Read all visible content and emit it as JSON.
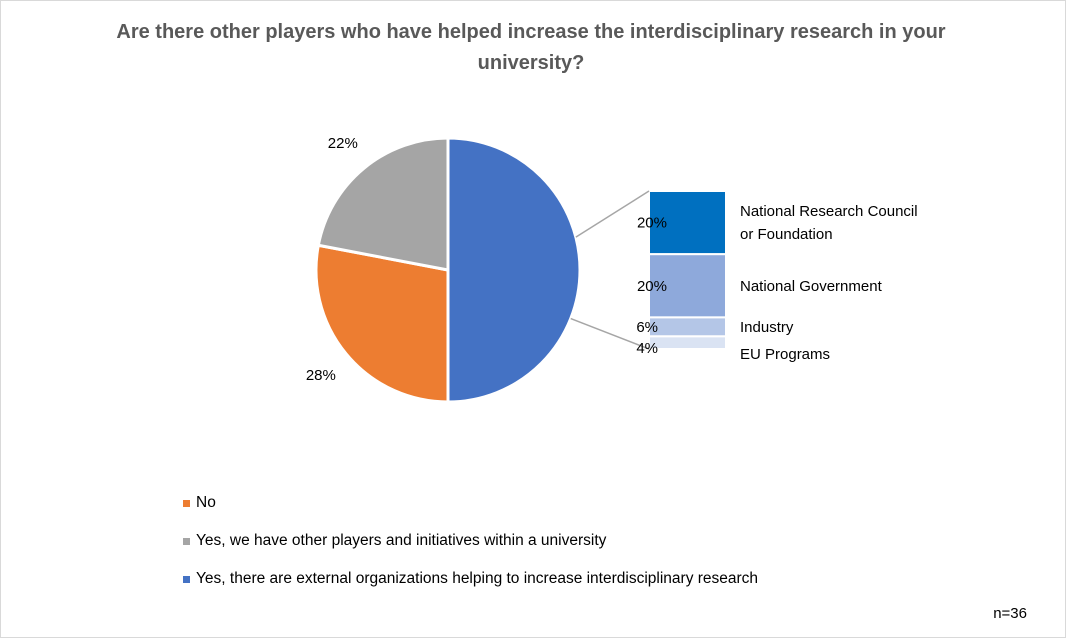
{
  "chart_data": {
    "type": "pie-of-pie",
    "title": "Are there other players who have helped increase the interdisciplinary research in your university?",
    "slices": [
      {
        "name": "Yes, there are external organizations helping to increase interdisciplinary research",
        "value": 50,
        "label": "",
        "color": "#4472C4"
      },
      {
        "name": "No",
        "value": 28,
        "label": "28%",
        "color": "#ED7D31"
      },
      {
        "name": "Yes, we have other players and initiatives within a university",
        "value": 22,
        "label": "22%",
        "color": "#A5A5A5"
      }
    ],
    "breakdown": {
      "of_slice": "Yes, there are external organizations helping to increase interdisciplinary research",
      "items": [
        {
          "name": "National Research Council or Foundation",
          "name_lines": [
            "National Research Council",
            "or Foundation"
          ],
          "value": 20,
          "label": "20%",
          "color": "#0070C0"
        },
        {
          "name": "National Government",
          "name_lines": [
            "National Government"
          ],
          "value": 20,
          "label": "20%",
          "color": "#8EA9DB"
        },
        {
          "name": "Industry",
          "name_lines": [
            "Industry"
          ],
          "value": 6,
          "label": "6%",
          "color": "#B4C6E7"
        },
        {
          "name": "EU Programs",
          "name_lines": [
            "EU Programs"
          ],
          "value": 4,
          "label": "4%",
          "color": "#DAE3F3"
        }
      ]
    },
    "legend": [
      {
        "label": "No",
        "color": "#ED7D31"
      },
      {
        "label": "Yes, we have other players and initiatives within a university",
        "color": "#A5A5A5"
      },
      {
        "label": "Yes, there are external organizations helping to increase interdisciplinary research",
        "color": "#4472C4"
      }
    ],
    "legend_position": "bottom-left",
    "note": "n=36"
  }
}
